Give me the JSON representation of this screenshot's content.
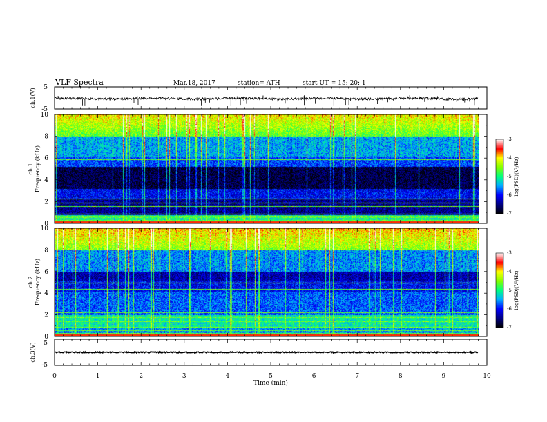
{
  "header": {
    "title": "VLF  Spectra",
    "date": "Mar.18, 2017",
    "station": "station= ATH",
    "start": "start  UT  =   15: 20: 1"
  },
  "chart_data": [
    {
      "id": "ch1-waveform",
      "type": "line",
      "ylabel": "ch.1(V)",
      "yticks": [
        "5",
        "-5"
      ],
      "ylim": [
        -5,
        5
      ],
      "xlim": [
        0,
        10
      ],
      "color": "#000000"
    },
    {
      "id": "ch1-spectrogram",
      "type": "heatmap",
      "ylabel_line1": "ch.1",
      "ylabel_line2": "Frequency (kHz)",
      "yticks": [
        "0",
        "2",
        "4",
        "6",
        "8",
        "10"
      ],
      "ylim": [
        0,
        10
      ],
      "xlim": [
        0,
        10
      ],
      "data_end_min": 9.8,
      "colorbar": {
        "label": "log(PSD)(V²/Hz)",
        "ticks": [
          "-3",
          "-4",
          "-5",
          "-6",
          "-7"
        ],
        "range": [
          -7,
          -3
        ]
      }
    },
    {
      "id": "ch2-spectrogram",
      "type": "heatmap",
      "ylabel_line1": "ch.2",
      "ylabel_line2": "Frequency (kHz)",
      "yticks": [
        "0",
        "2",
        "4",
        "6",
        "8",
        "10"
      ],
      "ylim": [
        0,
        10
      ],
      "xlim": [
        0,
        10
      ],
      "data_end_min": 9.8,
      "colorbar": {
        "label": "log(PSD)(V²/Hz)",
        "ticks": [
          "-3",
          "-4",
          "-5",
          "-6",
          "-7"
        ],
        "range": [
          -7,
          -3
        ]
      }
    },
    {
      "id": "ch3-waveform",
      "type": "line",
      "ylabel": "ch.3(V)",
      "yticks": [
        "5",
        "-5"
      ],
      "ylim": [
        -5,
        5
      ],
      "xlim": [
        0,
        10
      ],
      "color": "#000000"
    }
  ],
  "xaxis": {
    "label": "Time  (min)",
    "ticks": [
      "0",
      "1",
      "2",
      "3",
      "4",
      "5",
      "6",
      "7",
      "8",
      "9",
      "10"
    ]
  }
}
